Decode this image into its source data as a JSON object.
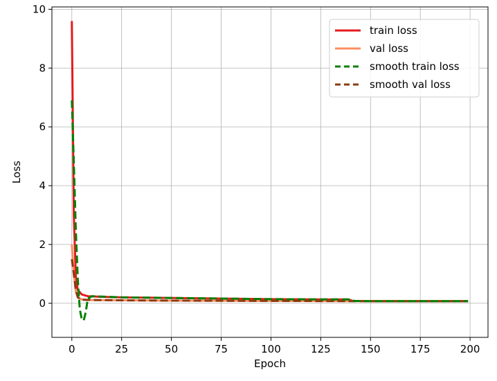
{
  "chart_data": {
    "type": "line",
    "title": "",
    "xlabel": "Epoch",
    "ylabel": "Loss",
    "xlim": [
      -10,
      209
    ],
    "ylim": [
      -1.16,
      10.08
    ],
    "xticks": [
      0,
      25,
      50,
      75,
      100,
      125,
      150,
      175,
      200
    ],
    "yticks": [
      0,
      2,
      4,
      6,
      8,
      10
    ],
    "grid": true,
    "legend_position": "top-right",
    "series": [
      {
        "name": "train loss",
        "color": "#e41a1c",
        "dash": "solid",
        "points": [
          [
            0,
            9.6
          ],
          [
            1,
            3.0
          ],
          [
            2,
            0.9
          ],
          [
            3,
            0.45
          ],
          [
            5,
            0.3
          ],
          [
            8,
            0.24
          ],
          [
            15,
            0.22
          ],
          [
            25,
            0.2
          ],
          [
            50,
            0.18
          ],
          [
            75,
            0.16
          ],
          [
            100,
            0.14
          ],
          [
            125,
            0.13
          ],
          [
            139,
            0.13
          ],
          [
            141,
            0.08
          ],
          [
            150,
            0.07
          ],
          [
            175,
            0.07
          ],
          [
            199,
            0.07
          ]
        ]
      },
      {
        "name": "val loss",
        "color": "#fc8d62",
        "dash": "solid",
        "points": [
          [
            0,
            2.0
          ],
          [
            1,
            1.0
          ],
          [
            2,
            0.4
          ],
          [
            3,
            0.2
          ],
          [
            5,
            0.13
          ],
          [
            10,
            0.11
          ],
          [
            25,
            0.1
          ],
          [
            50,
            0.09
          ],
          [
            100,
            0.08
          ],
          [
            150,
            0.07
          ],
          [
            199,
            0.07
          ]
        ]
      },
      {
        "name": "smooth train loss",
        "color": "#008000",
        "dash": "dashed",
        "points": [
          [
            0,
            6.9
          ],
          [
            1,
            4.8
          ],
          [
            2,
            2.5
          ],
          [
            3,
            0.8
          ],
          [
            4,
            -0.2
          ],
          [
            5,
            -0.55
          ],
          [
            6,
            -0.58
          ],
          [
            7,
            -0.3
          ],
          [
            8,
            0.15
          ],
          [
            10,
            0.24
          ],
          [
            25,
            0.2
          ],
          [
            50,
            0.18
          ],
          [
            75,
            0.16
          ],
          [
            100,
            0.14
          ],
          [
            125,
            0.13
          ],
          [
            139,
            0.13
          ],
          [
            142,
            0.08
          ],
          [
            150,
            0.07
          ],
          [
            175,
            0.07
          ],
          [
            199,
            0.07
          ]
        ]
      },
      {
        "name": "smooth val loss",
        "color": "#8b3a0f",
        "dash": "dashed",
        "points": [
          [
            0,
            1.5
          ],
          [
            1,
            1.0
          ],
          [
            2,
            0.45
          ],
          [
            3,
            0.2
          ],
          [
            5,
            0.12
          ],
          [
            10,
            0.11
          ],
          [
            25,
            0.1
          ],
          [
            50,
            0.09
          ],
          [
            100,
            0.08
          ],
          [
            150,
            0.07
          ],
          [
            199,
            0.07
          ]
        ]
      }
    ]
  }
}
